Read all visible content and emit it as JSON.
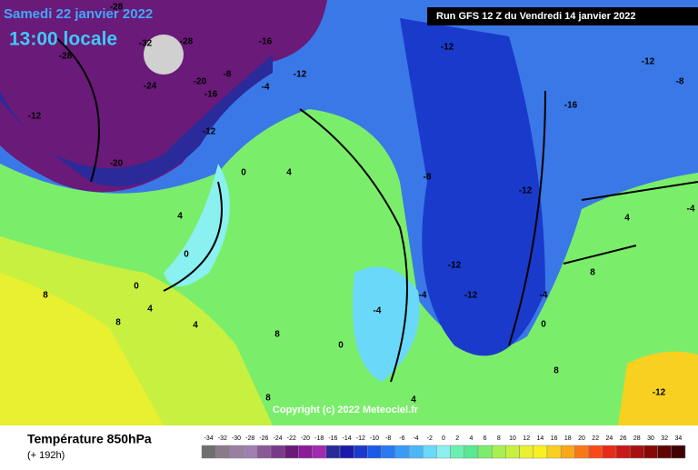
{
  "header": {
    "date": "Samedi 22 janvier 2022",
    "time": "13:00 locale",
    "run": "Run GFS 12 Z du Vendredi 14 janvier 2022"
  },
  "map": {
    "copyright": "Copyright (c) 2022 Meteociel.fr",
    "labels": [
      "-28",
      "-28",
      "-32",
      "-28",
      "-24",
      "-20",
      "-20",
      "-16",
      "-16",
      "-12",
      "-12",
      "-12",
      "-8",
      "-4",
      "0",
      "4",
      "4",
      "0",
      "0",
      "4",
      "8",
      "8",
      "8",
      "8",
      "4",
      "0",
      "-4",
      "-4",
      "-8",
      "-12",
      "-12",
      "-12",
      "-12",
      "-16",
      "-12",
      "-8",
      "-4",
      "4",
      "8",
      "8",
      "-12",
      "4",
      "0",
      "-4"
    ]
  },
  "legend": {
    "title": "Température 850hPa",
    "lead": "(+ 192h)",
    "ticks": [
      -34,
      -32,
      -30,
      -28,
      -26,
      -24,
      -22,
      -20,
      -18,
      -16,
      -14,
      -12,
      -10,
      -8,
      -6,
      -4,
      -2,
      0,
      2,
      4,
      6,
      8,
      10,
      12,
      14,
      16,
      18,
      20,
      22,
      24,
      26,
      28,
      30,
      32,
      34
    ],
    "colors": [
      "#6e6e6e",
      "#8a7a8a",
      "#9a7fa0",
      "#a080b0",
      "#8a5a98",
      "#7a3a88",
      "#6a1a78",
      "#8a1a9a",
      "#a02ab0",
      "#2a2a9a",
      "#1a1aaa",
      "#1a3acc",
      "#1a5ae8",
      "#2a7af0",
      "#3a9af8",
      "#4ab8f8",
      "#6ad8f8",
      "#8af0f0",
      "#6af0b0",
      "#5ae890",
      "#7aee6a",
      "#a8f050",
      "#c8f040",
      "#e8f030",
      "#f8f020",
      "#f8d020",
      "#f8a818",
      "#f87818",
      "#f84a18",
      "#e82a18",
      "#c81818",
      "#a81010",
      "#880808",
      "#600404",
      "#400202"
    ]
  }
}
